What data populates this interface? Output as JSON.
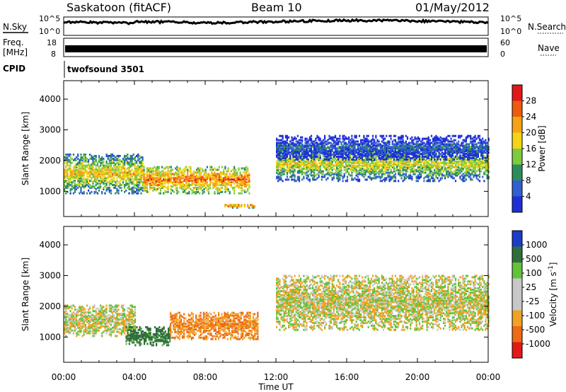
{
  "header": {
    "station": "Saskatoon (fitACF)",
    "beam": "Beam 10",
    "date": "01/May/2012"
  },
  "panels": {
    "nsky": {
      "label": "N.Sky",
      "scale_top": "10^5",
      "scale_bottom": "10^0"
    },
    "nsearch": {
      "label": "N.Search",
      "scale_top": "10^5",
      "scale_bottom": "10^0"
    },
    "freq": {
      "label_line1": "Freq.",
      "label_line2": "[MHz]",
      "ticks": [
        "18",
        "8"
      ]
    },
    "nave": {
      "label": "Nave",
      "ticks": [
        "60",
        "0"
      ]
    },
    "cpid": {
      "label": "CPID",
      "value": "twofsound 3501"
    }
  },
  "colors": {
    "power": [
      "#1f2fd6",
      "#2f5fd0",
      "#2e8c5a",
      "#7ecb3e",
      "#f2d516",
      "#f5a314",
      "#ee5a10",
      "#e21818"
    ],
    "velocity": [
      "#1a3cc8",
      "#2e6f3a",
      "#63c23a",
      "#c8c8c8",
      "#c8c8c8",
      "#f0a224",
      "#ee6a14",
      "#e51818"
    ]
  },
  "chart_data": [
    {
      "type": "heatmap",
      "quantity": "power",
      "xlabel": "Time UT",
      "ylabel": "Slant Range [km]",
      "colorbar_label": "Power [dB]",
      "colorbar_ticks": [
        "28",
        "24",
        "20",
        "16",
        "12",
        "8",
        "4"
      ],
      "xlim_hours": [
        0,
        24
      ],
      "ylim_km": [
        180,
        4600
      ],
      "yticks": [
        "1000",
        "2000",
        "3000",
        "4000"
      ],
      "features": [
        {
          "t_start_h": 0,
          "t_end_h": 4.5,
          "range_lo_km": 900,
          "range_hi_km": 2200,
          "power_db": 22
        },
        {
          "t_start_h": 4.5,
          "t_end_h": 10.5,
          "range_lo_km": 900,
          "range_hi_km": 1800,
          "power_db": 27
        },
        {
          "t_start_h": 9,
          "t_end_h": 10.8,
          "range_lo_km": 430,
          "range_hi_km": 560,
          "power_db": 27
        },
        {
          "t_start_h": 12,
          "t_end_h": 24,
          "range_lo_km": 1300,
          "range_hi_km": 2400,
          "power_db": 20
        },
        {
          "t_start_h": 12,
          "t_end_h": 24,
          "range_lo_km": 2000,
          "range_hi_km": 2800,
          "power_db": 10
        }
      ]
    },
    {
      "type": "heatmap",
      "quantity": "velocity",
      "xlabel": "Time UT",
      "ylabel": "Slant Range [km]",
      "colorbar_label": "Velocity [m s^-1]",
      "colorbar_ticks": [
        "1000",
        "500",
        "100",
        "25",
        "-25",
        "-100",
        "-500",
        "-1000"
      ],
      "xlim_hours": [
        0,
        24
      ],
      "ylim_km": [
        180,
        4600
      ],
      "yticks": [
        "1000",
        "2000",
        "3000",
        "4000"
      ],
      "xticks": [
        "00:00",
        "04:00",
        "08:00",
        "12:00",
        "16:00",
        "20:00",
        "00:00"
      ],
      "features": [
        {
          "t_start_h": 0,
          "t_end_h": 4,
          "range_lo_km": 1000,
          "range_hi_km": 2000,
          "velocity_ms": 0
        },
        {
          "t_start_h": 3.5,
          "t_end_h": 6,
          "range_lo_km": 700,
          "range_hi_km": 1300,
          "velocity_ms": 500
        },
        {
          "t_start_h": 6,
          "t_end_h": 11,
          "range_lo_km": 900,
          "range_hi_km": 1800,
          "velocity_ms": -300
        },
        {
          "t_start_h": 12,
          "t_end_h": 24,
          "range_lo_km": 1200,
          "range_hi_km": 3000,
          "velocity_ms": 0
        }
      ]
    }
  ]
}
